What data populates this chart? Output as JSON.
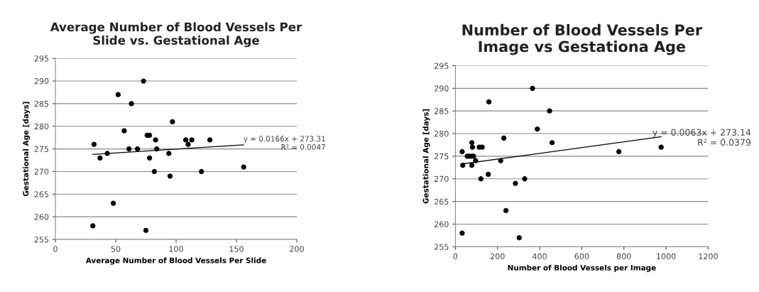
{
  "chart_data": [
    {
      "type": "scatter",
      "title": "Average Number of Blood Vessels Per Slide vs. Gestational Age",
      "xlabel": "Average Number of Blood Vessels Per Slide",
      "ylabel": "Gestational Age [days]",
      "xlim": [
        0,
        200
      ],
      "xticks": [
        0,
        50,
        100,
        150,
        200
      ],
      "ylim": [
        255,
        295
      ],
      "yticks": [
        255,
        260,
        265,
        270,
        275,
        280,
        285,
        290,
        295
      ],
      "grid": "y",
      "legend": false,
      "annotations": [
        "y = 0.0166x + 273.31",
        "R² = 0.0047"
      ],
      "series": [
        {
          "marker": "circle",
          "color": "#000000",
          "x": [
            32,
            37,
            43,
            31,
            48,
            52,
            57,
            61,
            63,
            68,
            73,
            75,
            76,
            78,
            78,
            82,
            83,
            84,
            94,
            95,
            97,
            108,
            110,
            113,
            121,
            128,
            156
          ],
          "values": [
            276,
            273,
            274,
            258,
            263,
            287,
            279,
            275,
            285,
            275,
            290,
            257,
            278,
            278,
            273,
            270,
            277,
            275,
            274,
            269,
            281,
            277,
            276,
            277,
            270,
            277,
            271
          ]
        },
        {
          "type": "line",
          "color": "#000000",
          "x": [
            31,
            156
          ],
          "values": [
            273.8,
            275.9
          ]
        }
      ]
    },
    {
      "type": "scatter",
      "title": "Number of Blood Vessels Per Image vs Gestationa Age",
      "xlabel": "Number of Blood Vessels per Image",
      "ylabel": "Gestational Age [days]",
      "xlim": [
        0,
        1200
      ],
      "xticks": [
        0,
        200,
        400,
        600,
        800,
        1000,
        1200
      ],
      "ylim": [
        255,
        295
      ],
      "yticks": [
        255,
        260,
        265,
        270,
        275,
        280,
        285,
        290,
        295
      ],
      "grid": "y",
      "legend": false,
      "annotations": [
        "y = 0.0063x + 273.14",
        "R² = 0.0379"
      ],
      "series": [
        {
          "marker": "circle",
          "color": "#000000",
          "x": [
            32,
            35,
            32,
            56,
            65,
            78,
            81,
            78,
            76,
            86,
            96,
            113,
            127,
            121,
            156,
            159,
            215,
            230,
            240,
            285,
            303,
            329,
            366,
            389,
            447,
            459,
            776,
            977
          ],
          "values": [
            276,
            273,
            258,
            275,
            275,
            278,
            277,
            273,
            275,
            275,
            274,
            277,
            277,
            270,
            271,
            287,
            274,
            279,
            263,
            269,
            257,
            270,
            290,
            281,
            285,
            278,
            276,
            277
          ]
        },
        {
          "type": "line",
          "color": "#000000",
          "x": [
            32,
            977
          ],
          "values": [
            273.3,
            279.3
          ]
        }
      ]
    }
  ]
}
